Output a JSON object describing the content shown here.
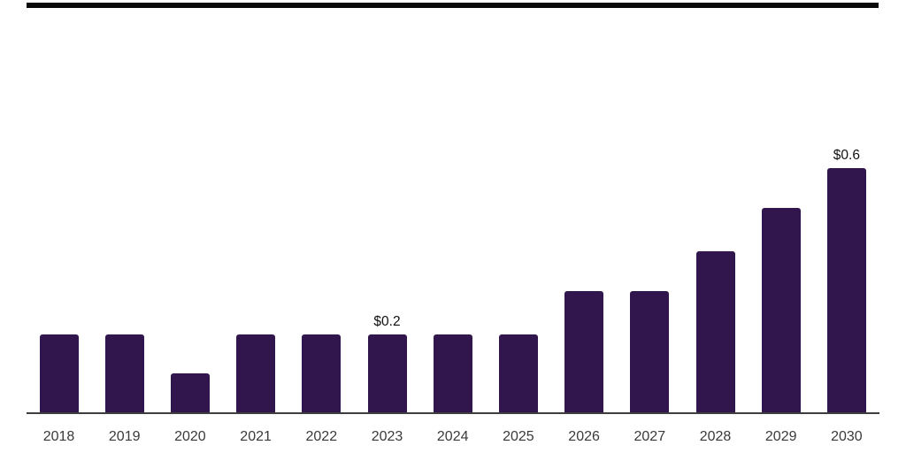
{
  "chart_data": {
    "type": "bar",
    "title": "",
    "xlabel": "",
    "ylabel": "",
    "categories": [
      "2018",
      "2019",
      "2020",
      "2021",
      "2022",
      "2023",
      "2024",
      "2025",
      "2026",
      "2027",
      "2028",
      "2029",
      "2030"
    ],
    "values": [
      0.2,
      0.2,
      0.1,
      0.2,
      0.2,
      0.2,
      0.2,
      0.2,
      0.31,
      0.31,
      0.41,
      0.52,
      0.62
    ],
    "data_labels": [
      {
        "category": "2023",
        "label": "$0.2"
      },
      {
        "category": "2030",
        "label": "$0.6"
      }
    ],
    "ylim": [
      0,
      0.66
    ],
    "grid": false,
    "legend": "none",
    "axes": {
      "y_axis_visible": false,
      "x_tick_marks": false
    },
    "colors": {
      "bar": "#31164D",
      "axis_line": "#3E3E3E",
      "tick_label": "#3A3A3A",
      "data_label": "#111111",
      "top_rule": "#0A0A0A",
      "background": "#FFFFFF"
    }
  }
}
